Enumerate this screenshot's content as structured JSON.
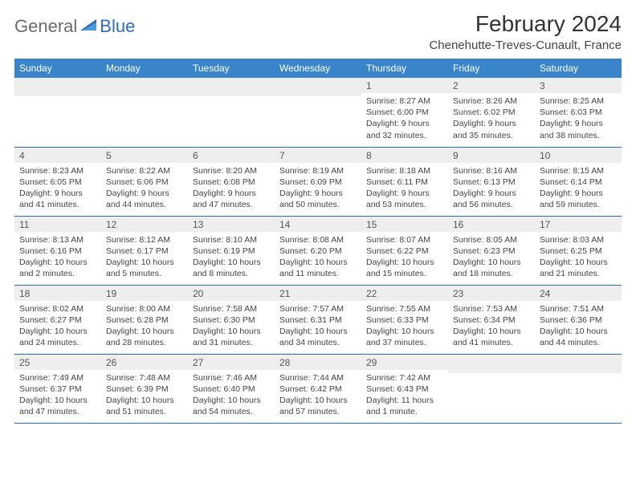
{
  "brand": {
    "part1": "General",
    "part2": "Blue"
  },
  "title": "February 2024",
  "location": "Chenehutte-Treves-Cunault, France",
  "colors": {
    "header_bg": "#3a85c9",
    "border": "#2a6db5",
    "daynum_bg": "#eeeeee",
    "text": "#444444",
    "title_text": "#333333"
  },
  "day_names": [
    "Sunday",
    "Monday",
    "Tuesday",
    "Wednesday",
    "Thursday",
    "Friday",
    "Saturday"
  ],
  "weeks": [
    [
      null,
      null,
      null,
      null,
      {
        "n": "1",
        "sr": "8:27 AM",
        "ss": "6:00 PM",
        "dl": "9 hours and 32 minutes."
      },
      {
        "n": "2",
        "sr": "8:26 AM",
        "ss": "6:02 PM",
        "dl": "9 hours and 35 minutes."
      },
      {
        "n": "3",
        "sr": "8:25 AM",
        "ss": "6:03 PM",
        "dl": "9 hours and 38 minutes."
      }
    ],
    [
      {
        "n": "4",
        "sr": "8:23 AM",
        "ss": "6:05 PM",
        "dl": "9 hours and 41 minutes."
      },
      {
        "n": "5",
        "sr": "8:22 AM",
        "ss": "6:06 PM",
        "dl": "9 hours and 44 minutes."
      },
      {
        "n": "6",
        "sr": "8:20 AM",
        "ss": "6:08 PM",
        "dl": "9 hours and 47 minutes."
      },
      {
        "n": "7",
        "sr": "8:19 AM",
        "ss": "6:09 PM",
        "dl": "9 hours and 50 minutes."
      },
      {
        "n": "8",
        "sr": "8:18 AM",
        "ss": "6:11 PM",
        "dl": "9 hours and 53 minutes."
      },
      {
        "n": "9",
        "sr": "8:16 AM",
        "ss": "6:13 PM",
        "dl": "9 hours and 56 minutes."
      },
      {
        "n": "10",
        "sr": "8:15 AM",
        "ss": "6:14 PM",
        "dl": "9 hours and 59 minutes."
      }
    ],
    [
      {
        "n": "11",
        "sr": "8:13 AM",
        "ss": "6:16 PM",
        "dl": "10 hours and 2 minutes."
      },
      {
        "n": "12",
        "sr": "8:12 AM",
        "ss": "6:17 PM",
        "dl": "10 hours and 5 minutes."
      },
      {
        "n": "13",
        "sr": "8:10 AM",
        "ss": "6:19 PM",
        "dl": "10 hours and 8 minutes."
      },
      {
        "n": "14",
        "sr": "8:08 AM",
        "ss": "6:20 PM",
        "dl": "10 hours and 11 minutes."
      },
      {
        "n": "15",
        "sr": "8:07 AM",
        "ss": "6:22 PM",
        "dl": "10 hours and 15 minutes."
      },
      {
        "n": "16",
        "sr": "8:05 AM",
        "ss": "6:23 PM",
        "dl": "10 hours and 18 minutes."
      },
      {
        "n": "17",
        "sr": "8:03 AM",
        "ss": "6:25 PM",
        "dl": "10 hours and 21 minutes."
      }
    ],
    [
      {
        "n": "18",
        "sr": "8:02 AM",
        "ss": "6:27 PM",
        "dl": "10 hours and 24 minutes."
      },
      {
        "n": "19",
        "sr": "8:00 AM",
        "ss": "6:28 PM",
        "dl": "10 hours and 28 minutes."
      },
      {
        "n": "20",
        "sr": "7:58 AM",
        "ss": "6:30 PM",
        "dl": "10 hours and 31 minutes."
      },
      {
        "n": "21",
        "sr": "7:57 AM",
        "ss": "6:31 PM",
        "dl": "10 hours and 34 minutes."
      },
      {
        "n": "22",
        "sr": "7:55 AM",
        "ss": "6:33 PM",
        "dl": "10 hours and 37 minutes."
      },
      {
        "n": "23",
        "sr": "7:53 AM",
        "ss": "6:34 PM",
        "dl": "10 hours and 41 minutes."
      },
      {
        "n": "24",
        "sr": "7:51 AM",
        "ss": "6:36 PM",
        "dl": "10 hours and 44 minutes."
      }
    ],
    [
      {
        "n": "25",
        "sr": "7:49 AM",
        "ss": "6:37 PM",
        "dl": "10 hours and 47 minutes."
      },
      {
        "n": "26",
        "sr": "7:48 AM",
        "ss": "6:39 PM",
        "dl": "10 hours and 51 minutes."
      },
      {
        "n": "27",
        "sr": "7:46 AM",
        "ss": "6:40 PM",
        "dl": "10 hours and 54 minutes."
      },
      {
        "n": "28",
        "sr": "7:44 AM",
        "ss": "6:42 PM",
        "dl": "10 hours and 57 minutes."
      },
      {
        "n": "29",
        "sr": "7:42 AM",
        "ss": "6:43 PM",
        "dl": "11 hours and 1 minute."
      },
      null,
      null
    ]
  ],
  "labels": {
    "sunrise": "Sunrise: ",
    "sunset": "Sunset: ",
    "daylight": "Daylight: "
  }
}
